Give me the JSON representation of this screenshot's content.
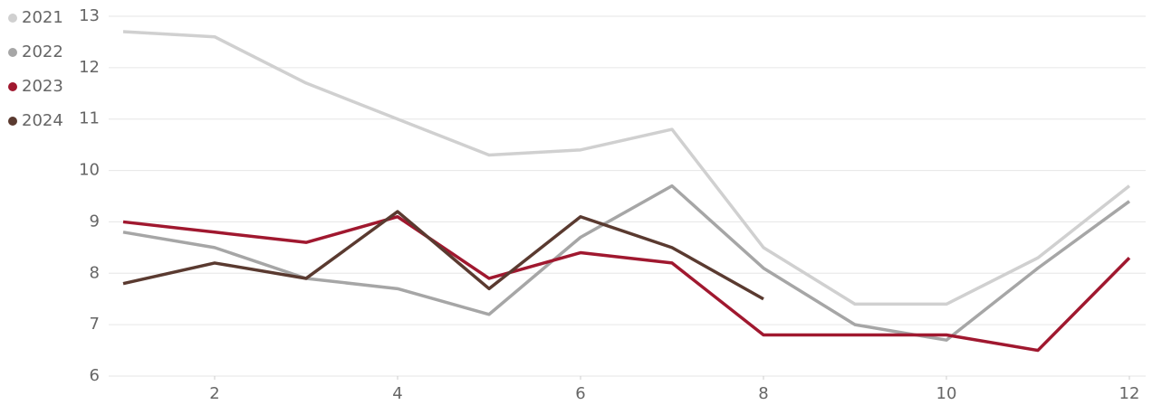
{
  "chart_data": {
    "type": "line",
    "x": [
      1,
      2,
      3,
      4,
      5,
      6,
      7,
      8,
      9,
      10,
      11,
      12
    ],
    "series": [
      {
        "name": "2021",
        "color": "#d0d0d0",
        "values": [
          12.7,
          12.6,
          11.7,
          11.0,
          10.3,
          10.4,
          10.8,
          8.5,
          7.4,
          7.4,
          8.3,
          9.7
        ]
      },
      {
        "name": "2022",
        "color": "#a6a6a6",
        "values": [
          8.8,
          8.5,
          7.9,
          7.7,
          7.2,
          8.7,
          9.7,
          8.1,
          7.0,
          6.7,
          8.1,
          9.4
        ]
      },
      {
        "name": "2023",
        "color": "#a0182f",
        "values": [
          9.0,
          8.8,
          8.6,
          9.1,
          7.9,
          8.4,
          8.2,
          6.8,
          6.8,
          6.8,
          6.5,
          8.3
        ]
      },
      {
        "name": "2024",
        "color": "#5a3a30",
        "values": [
          7.8,
          8.2,
          7.9,
          9.2,
          7.7,
          9.1,
          8.5,
          7.5,
          null,
          null,
          null,
          null
        ]
      }
    ],
    "xlim": [
      1,
      12
    ],
    "xticks": [
      2,
      4,
      6,
      8,
      10,
      12
    ],
    "ylim": [
      6,
      13
    ],
    "yticks": [
      6,
      7,
      8,
      9,
      10,
      11,
      12,
      13
    ],
    "grid": true,
    "legend": "top-left"
  }
}
